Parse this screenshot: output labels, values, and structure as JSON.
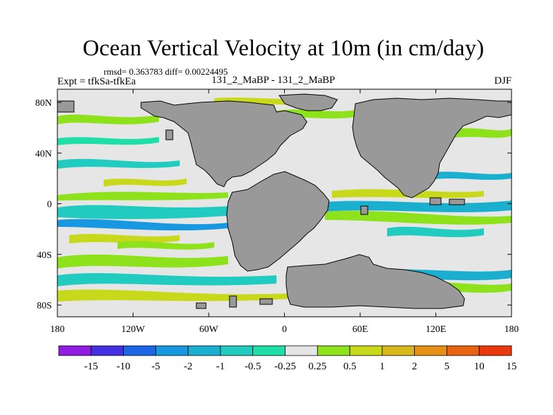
{
  "title": "Ocean Vertical Velocity at 10m (in cm/day)",
  "stats": "rmsd= 0.363783 diff= 0.00224495",
  "experiment": "Expt = tfkSa-tfkEa",
  "comparison": "131_2_MaBP - 131_2_MaBP",
  "season": "DJF",
  "axes": {
    "x_ticks": [
      "180",
      "120W",
      "60W",
      "0",
      "60E",
      "120E",
      "180"
    ],
    "y_ticks": [
      "80N",
      "40N",
      "0",
      "40S",
      "80S"
    ]
  },
  "colorbar": {
    "labels": [
      "-15",
      "-10",
      "-5",
      "-2",
      "-1",
      "-0.5",
      "-0.25",
      "0.25",
      "0.5",
      "1",
      "2",
      "5",
      "10",
      "15"
    ],
    "colors": [
      "#8f1ce0",
      "#4430e0",
      "#1c66e6",
      "#1898e0",
      "#1aafcf",
      "#22cbc0",
      "#1fdfa8",
      "#e6e6e6",
      "#8ee21c",
      "#c8d81a",
      "#d7b81c",
      "#e69018",
      "#e86410",
      "#e8380c"
    ]
  },
  "colors": {
    "land": "#999999",
    "ocean_neutral": "#e6e6e6",
    "frame": "#000000"
  }
}
